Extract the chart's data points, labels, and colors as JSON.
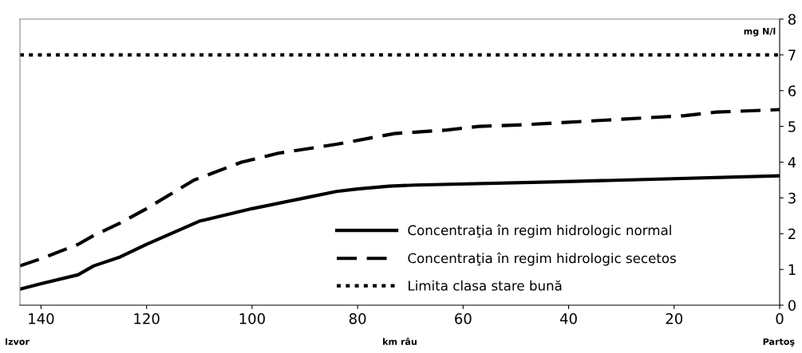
{
  "chart_data": {
    "type": "line",
    "xlabel": "km râu",
    "ylabel": "mg N/l",
    "xlim": [
      144,
      0
    ],
    "xticks": [
      140,
      120,
      100,
      80,
      60,
      40,
      20,
      0
    ],
    "ylim": [
      0,
      8
    ],
    "yticks": [
      0,
      1,
      2,
      3,
      4,
      5,
      6,
      7,
      8
    ],
    "grid": false,
    "legend": "bottom right",
    "marker": "none",
    "annotations": [
      "Izvor",
      "Partoş"
    ],
    "series": [
      {
        "name": "Concentraţia în regim hidrologic normal",
        "color": "#000000",
        "line_style": "solid",
        "x": [
          144,
          140,
          133,
          130,
          125,
          120,
          110,
          100,
          90,
          84,
          80,
          74,
          69,
          42,
          0
        ],
        "values": [
          0.45,
          0.6,
          0.85,
          1.1,
          1.35,
          1.7,
          2.35,
          2.7,
          3.0,
          3.18,
          3.25,
          3.33,
          3.36,
          3.45,
          3.62
        ]
      },
      {
        "name": "Concentraţia în regim hidrologic secetos",
        "color": "#000000",
        "line_style": "dashed",
        "x": [
          144,
          140,
          133,
          130,
          125,
          120,
          111,
          102,
          95,
          84,
          73,
          63,
          57,
          48,
          30,
          18,
          12,
          0
        ],
        "values": [
          1.1,
          1.3,
          1.7,
          1.95,
          2.3,
          2.7,
          3.5,
          4.0,
          4.25,
          4.5,
          4.8,
          4.9,
          5.0,
          5.05,
          5.2,
          5.3,
          5.4,
          5.47
        ]
      },
      {
        "name": "Limita clasa stare bună",
        "color": "#000000",
        "line_style": "dotted",
        "x": [
          144,
          0
        ],
        "values": [
          7,
          7
        ]
      }
    ]
  }
}
